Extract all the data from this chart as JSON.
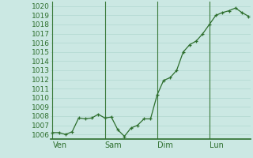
{
  "background_color": "#cbe8e3",
  "grid_color": "#b0d8d0",
  "line_color": "#2d6e2d",
  "marker_color": "#2d6e2d",
  "axis_color": "#2d6e2d",
  "vline_color": "#3a7a3a",
  "ylim": [
    1005.5,
    1020.5
  ],
  "yticks": [
    1006,
    1007,
    1008,
    1009,
    1010,
    1011,
    1012,
    1013,
    1014,
    1015,
    1016,
    1017,
    1018,
    1019,
    1020
  ],
  "day_labels": [
    "Ven",
    "Sam",
    "Dim",
    "Lun"
  ],
  "day_positions": [
    0,
    8,
    16,
    24
  ],
  "x_values": [
    0,
    1,
    2,
    3,
    4,
    5,
    6,
    7,
    8,
    9,
    10,
    11,
    12,
    13,
    14,
    15,
    16,
    17,
    18,
    19,
    20,
    21,
    22,
    23,
    24,
    25,
    26,
    27,
    28,
    29,
    30
  ],
  "y_values": [
    1006.2,
    1006.2,
    1006.0,
    1006.3,
    1007.8,
    1007.7,
    1007.8,
    1008.2,
    1007.8,
    1007.9,
    1006.5,
    1005.8,
    1006.7,
    1007.0,
    1007.7,
    1007.7,
    1010.3,
    1011.9,
    1012.2,
    1013.0,
    1015.0,
    1015.8,
    1016.2,
    1017.0,
    1018.0,
    1019.0,
    1019.3,
    1019.5,
    1019.8,
    1019.3,
    1018.9
  ],
  "xlim": [
    -0.3,
    30.3
  ],
  "tick_fontsize": 6.5,
  "label_fontsize": 7.0
}
